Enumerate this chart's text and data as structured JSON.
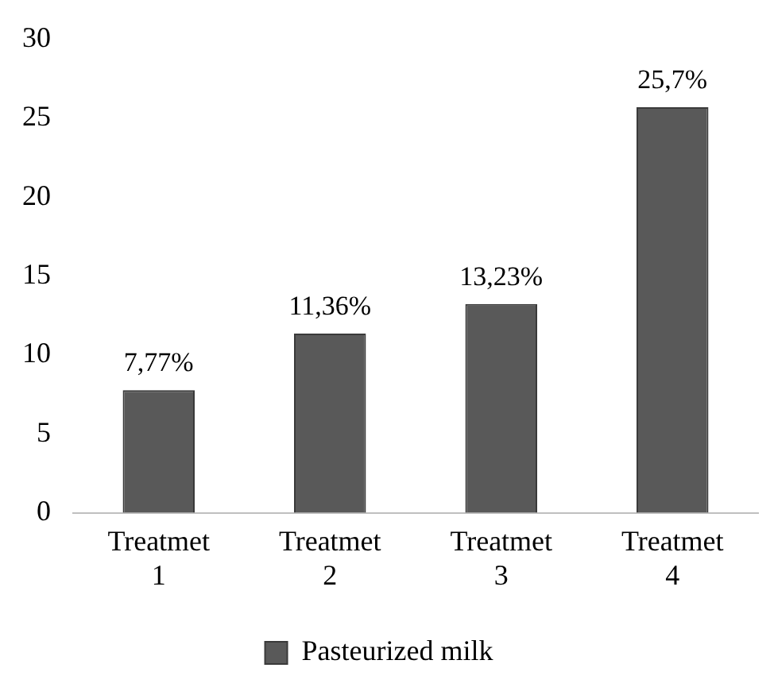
{
  "chart_data": {
    "type": "bar",
    "categories": [
      "Treatmet 1",
      "Treatmet 2",
      "Treatmet 3",
      "Treatmet 4"
    ],
    "series": [
      {
        "name": "Pasteurized milk",
        "color": "#595959",
        "values": [
          7.77,
          11.36,
          13.23,
          25.7
        ],
        "value_labels": [
          "7,77%",
          "11,36%",
          "13,23%",
          "25,7%"
        ]
      }
    ],
    "ylim": [
      0,
      30
    ],
    "yticks": [
      0,
      5,
      10,
      15,
      20,
      25,
      30
    ],
    "grid": false,
    "legend": "bottom"
  }
}
